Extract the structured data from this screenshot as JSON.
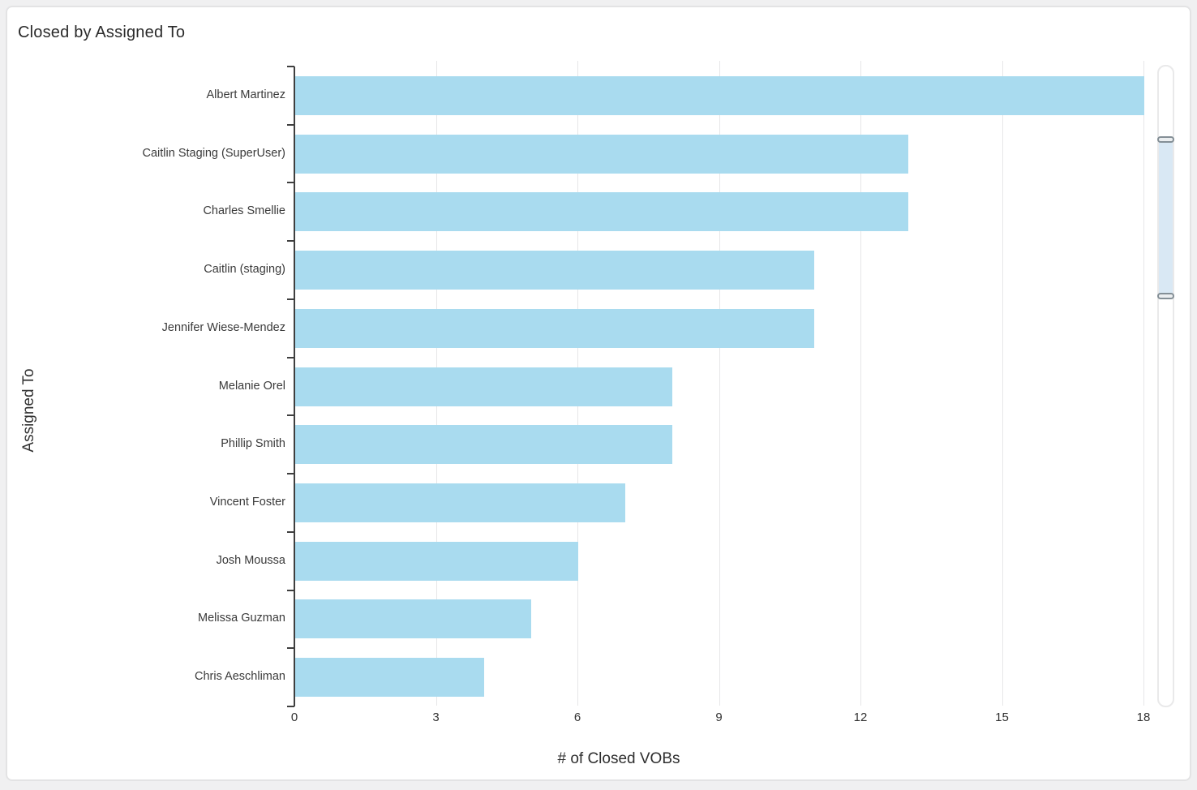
{
  "widget": {
    "title": "Closed by Assigned To"
  },
  "chart_data": {
    "type": "bar",
    "orientation": "horizontal",
    "title": "Closed by Assigned To",
    "xlabel": "# of Closed VOBs",
    "ylabel": "Assigned To",
    "categories": [
      "Albert Martinez",
      "Caitlin Staging (SuperUser)",
      "Charles Smellie",
      "Caitlin (staging)",
      "Jennifer Wiese-Mendez",
      "Melanie Orel",
      "Phillip Smith",
      "Vincent Foster",
      "Josh Moussa",
      "Melissa Guzman",
      "Chris Aeschliman"
    ],
    "values": [
      18,
      13,
      13,
      11,
      11,
      8,
      8,
      7,
      6,
      5,
      4
    ],
    "xlim": [
      0,
      18
    ],
    "xticks": [
      0,
      3,
      6,
      9,
      12,
      15,
      18
    ],
    "grid": "vertical-only",
    "legend": false,
    "bar_color": "#a9dbef",
    "gridline_color": "#e7e7e8",
    "axis_color": "#3f3f3f",
    "text_color": "#333333"
  },
  "scrollbar": {
    "orientation": "vertical",
    "selection_color": "#d9e8f4"
  }
}
